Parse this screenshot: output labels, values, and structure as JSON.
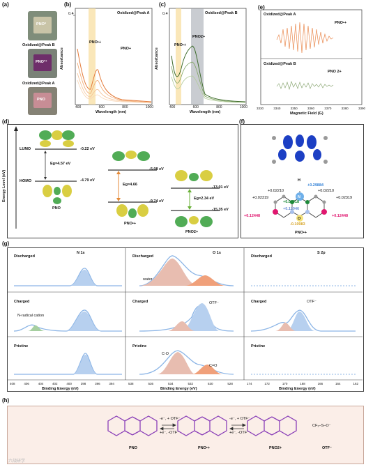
{
  "panels": {
    "a": "(a)",
    "b": "(b)",
    "c": "(c)",
    "d": "(d)",
    "e": "(e)",
    "f": "(f)",
    "g": "(g)",
    "h": "(h)"
  },
  "a": {
    "pno_label": "PNO*",
    "cap_b": "Oxidized@Peak B",
    "cap_b_vial": "PNO²⁺",
    "cap_a": "Oxidized@Peak A",
    "cap_a_vial": "PNO"
  },
  "b": {
    "title": "Oxidized@Peak A",
    "ylabel": "Absorbance",
    "xlabel": "Wavelength (nm)",
    "xticks": [
      "400",
      "600",
      "800",
      "1000"
    ],
    "ytick": "0.4",
    "peak_label": "PNO•+",
    "pno_label": "PNO+"
  },
  "c": {
    "title": "Oxidized@Peak B",
    "ylabel": "Absorbance",
    "xlabel": "Wavelength (nm)",
    "xticks": [
      "400",
      "600",
      "800",
      "1000"
    ],
    "ytick": "0.4",
    "peak1": "PNO•+",
    "peak2": "PNO2+"
  },
  "e": {
    "title_a": "Oxidized@Peak A",
    "title_b": "Oxidized@Peak B",
    "label_a": "PNO•+",
    "label_b": "PNO 2+",
    "xlabel": "Magnetic Field (G)",
    "xticks": [
      "3330",
      "3340",
      "3350",
      "3360",
      "3370",
      "3380",
      "3390"
    ]
  },
  "d": {
    "yaxis": "Energy Level (eV)",
    "lumo": "LUMO",
    "homo": "HOMO",
    "pno": {
      "name": "PNO",
      "lumo": "-0.22 eV",
      "homo": "-4.79 eV",
      "gap": "Eg=4.57 eV"
    },
    "pno1": {
      "name": "PNO•+",
      "lumo": "-5.08 eV",
      "homo": "-9.74 eV",
      "gap": "Eg=4.66"
    },
    "pno2": {
      "name": "PNO2+",
      "lumo": "-13.01 eV",
      "homo": "-15.35 eV",
      "gap": "Eg=2.34 eV"
    }
  },
  "f": {
    "charges": {
      "n": "+0.29884",
      "c1": "+0.04918",
      "c2": "+0.12946",
      "o": "-0.10983",
      "l1": "+0.02210",
      "r1": "+0.02210",
      "l2": "+0.02319",
      "r2": "+0.02319",
      "lp": "+0.12448",
      "rp": "+0.12448"
    },
    "n_label": "N",
    "h_label": "H",
    "o_label": "O",
    "caption": "PNO•+"
  },
  "g": {
    "col_titles": [
      "N 1s",
      "O 1s",
      "S 2p"
    ],
    "rows": [
      "Discharged",
      "Charged",
      "Pristine"
    ],
    "xlabel": "Binding Energy (eV)",
    "n_ticks": [
      "408",
      "406",
      "404",
      "402",
      "400",
      "398",
      "396",
      "394"
    ],
    "o_ticks": [
      "538",
      "536",
      "534",
      "532",
      "530",
      "528"
    ],
    "s_ticks": [
      "174",
      "172",
      "170",
      "168",
      "166",
      "164",
      "162"
    ],
    "annot_water": "water",
    "annot_radical": "N-radical cation",
    "annot_otf_o": "OTF⁻",
    "annot_otf_s": "OTF⁻",
    "annot_co": "C-O",
    "annot_ceo": "C=O"
  },
  "h": {
    "pno": "PNO",
    "pno1": "PNO•+",
    "pno2": "PNO2+",
    "otf": "OTF⁻",
    "arrow1_top": "-e⁻, + OTF⁻",
    "arrow1_bot": "+e⁻, -OTF⁻",
    "arrow2_top": "-e⁻, + OTF⁻",
    "arrow2_bot": "+e⁻, -OTF⁻",
    "cf3": "CF₃–S–O⁻"
  },
  "watermark": "六战研学",
  "colors": {
    "orange": "#e9884d",
    "green": "#5f8a3c",
    "blue": "#4a7fd6",
    "pink": "#e99a7d",
    "lightblue": "#8cb5e6",
    "gold": "#f4d590",
    "grey": "#9aa2ad"
  }
}
